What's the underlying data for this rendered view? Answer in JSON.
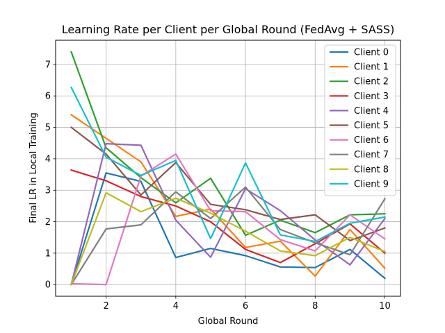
{
  "chart_data": {
    "type": "line",
    "title": "Learning Rate per Client per Global Round (FedAvg + SASS)",
    "xlabel": "Global Round",
    "ylabel": "Final LR in Local Training",
    "x": [
      1,
      2,
      3,
      4,
      5,
      6,
      7,
      8,
      9,
      10
    ],
    "xlim": [
      0.55,
      10.45
    ],
    "ylim": [
      -0.37,
      7.77
    ],
    "xticks": [
      2,
      4,
      6,
      8,
      10
    ],
    "yticks": [
      0,
      1,
      2,
      3,
      4,
      5,
      6,
      7
    ],
    "grid": true,
    "legend_position": "top-right",
    "series": [
      {
        "name": "Client 0",
        "color": "#1f77b4",
        "values": [
          0.0,
          3.55,
          3.28,
          0.86,
          1.15,
          0.92,
          0.56,
          0.54,
          1.12,
          0.2
        ]
      },
      {
        "name": "Client 1",
        "color": "#ff7f0e",
        "values": [
          5.4,
          4.65,
          3.9,
          2.17,
          2.4,
          1.18,
          1.38,
          0.27,
          1.75,
          0.52
        ]
      },
      {
        "name": "Client 2",
        "color": "#2ca02c",
        "values": [
          7.4,
          4.35,
          3.4,
          2.6,
          3.38,
          1.57,
          2.05,
          1.65,
          2.22,
          2.25
        ]
      },
      {
        "name": "Client 3",
        "color": "#d62728",
        "values": [
          3.64,
          3.3,
          2.8,
          2.5,
          2.0,
          1.12,
          0.7,
          1.3,
          1.93,
          1.0
        ]
      },
      {
        "name": "Client 4",
        "color": "#9467bd",
        "values": [
          0.0,
          4.48,
          4.43,
          2.05,
          0.87,
          3.05,
          2.35,
          1.42,
          0.63,
          2.1
        ]
      },
      {
        "name": "Client 5",
        "color": "#8c564b",
        "values": [
          5.0,
          4.15,
          2.85,
          3.88,
          2.55,
          2.38,
          2.07,
          2.22,
          1.4,
          1.8
        ]
      },
      {
        "name": "Client 6",
        "color": "#e377c2",
        "values": [
          0.03,
          0.0,
          3.45,
          4.15,
          2.35,
          2.32,
          1.43,
          1.07,
          2.22,
          1.45
        ]
      },
      {
        "name": "Client 7",
        "color": "#7f7f7f",
        "values": [
          0.0,
          1.77,
          1.9,
          2.95,
          2.1,
          3.1,
          1.75,
          1.33,
          0.95,
          2.73
        ]
      },
      {
        "name": "Client 8",
        "color": "#bcbd22",
        "values": [
          0.0,
          2.92,
          2.32,
          2.75,
          2.27,
          1.7,
          1.07,
          0.92,
          1.5,
          1.05
        ]
      },
      {
        "name": "Client 9",
        "color": "#17becf",
        "values": [
          6.27,
          4.05,
          3.47,
          3.95,
          1.46,
          3.87,
          1.58,
          1.37,
          1.95,
          2.15
        ]
      }
    ]
  }
}
